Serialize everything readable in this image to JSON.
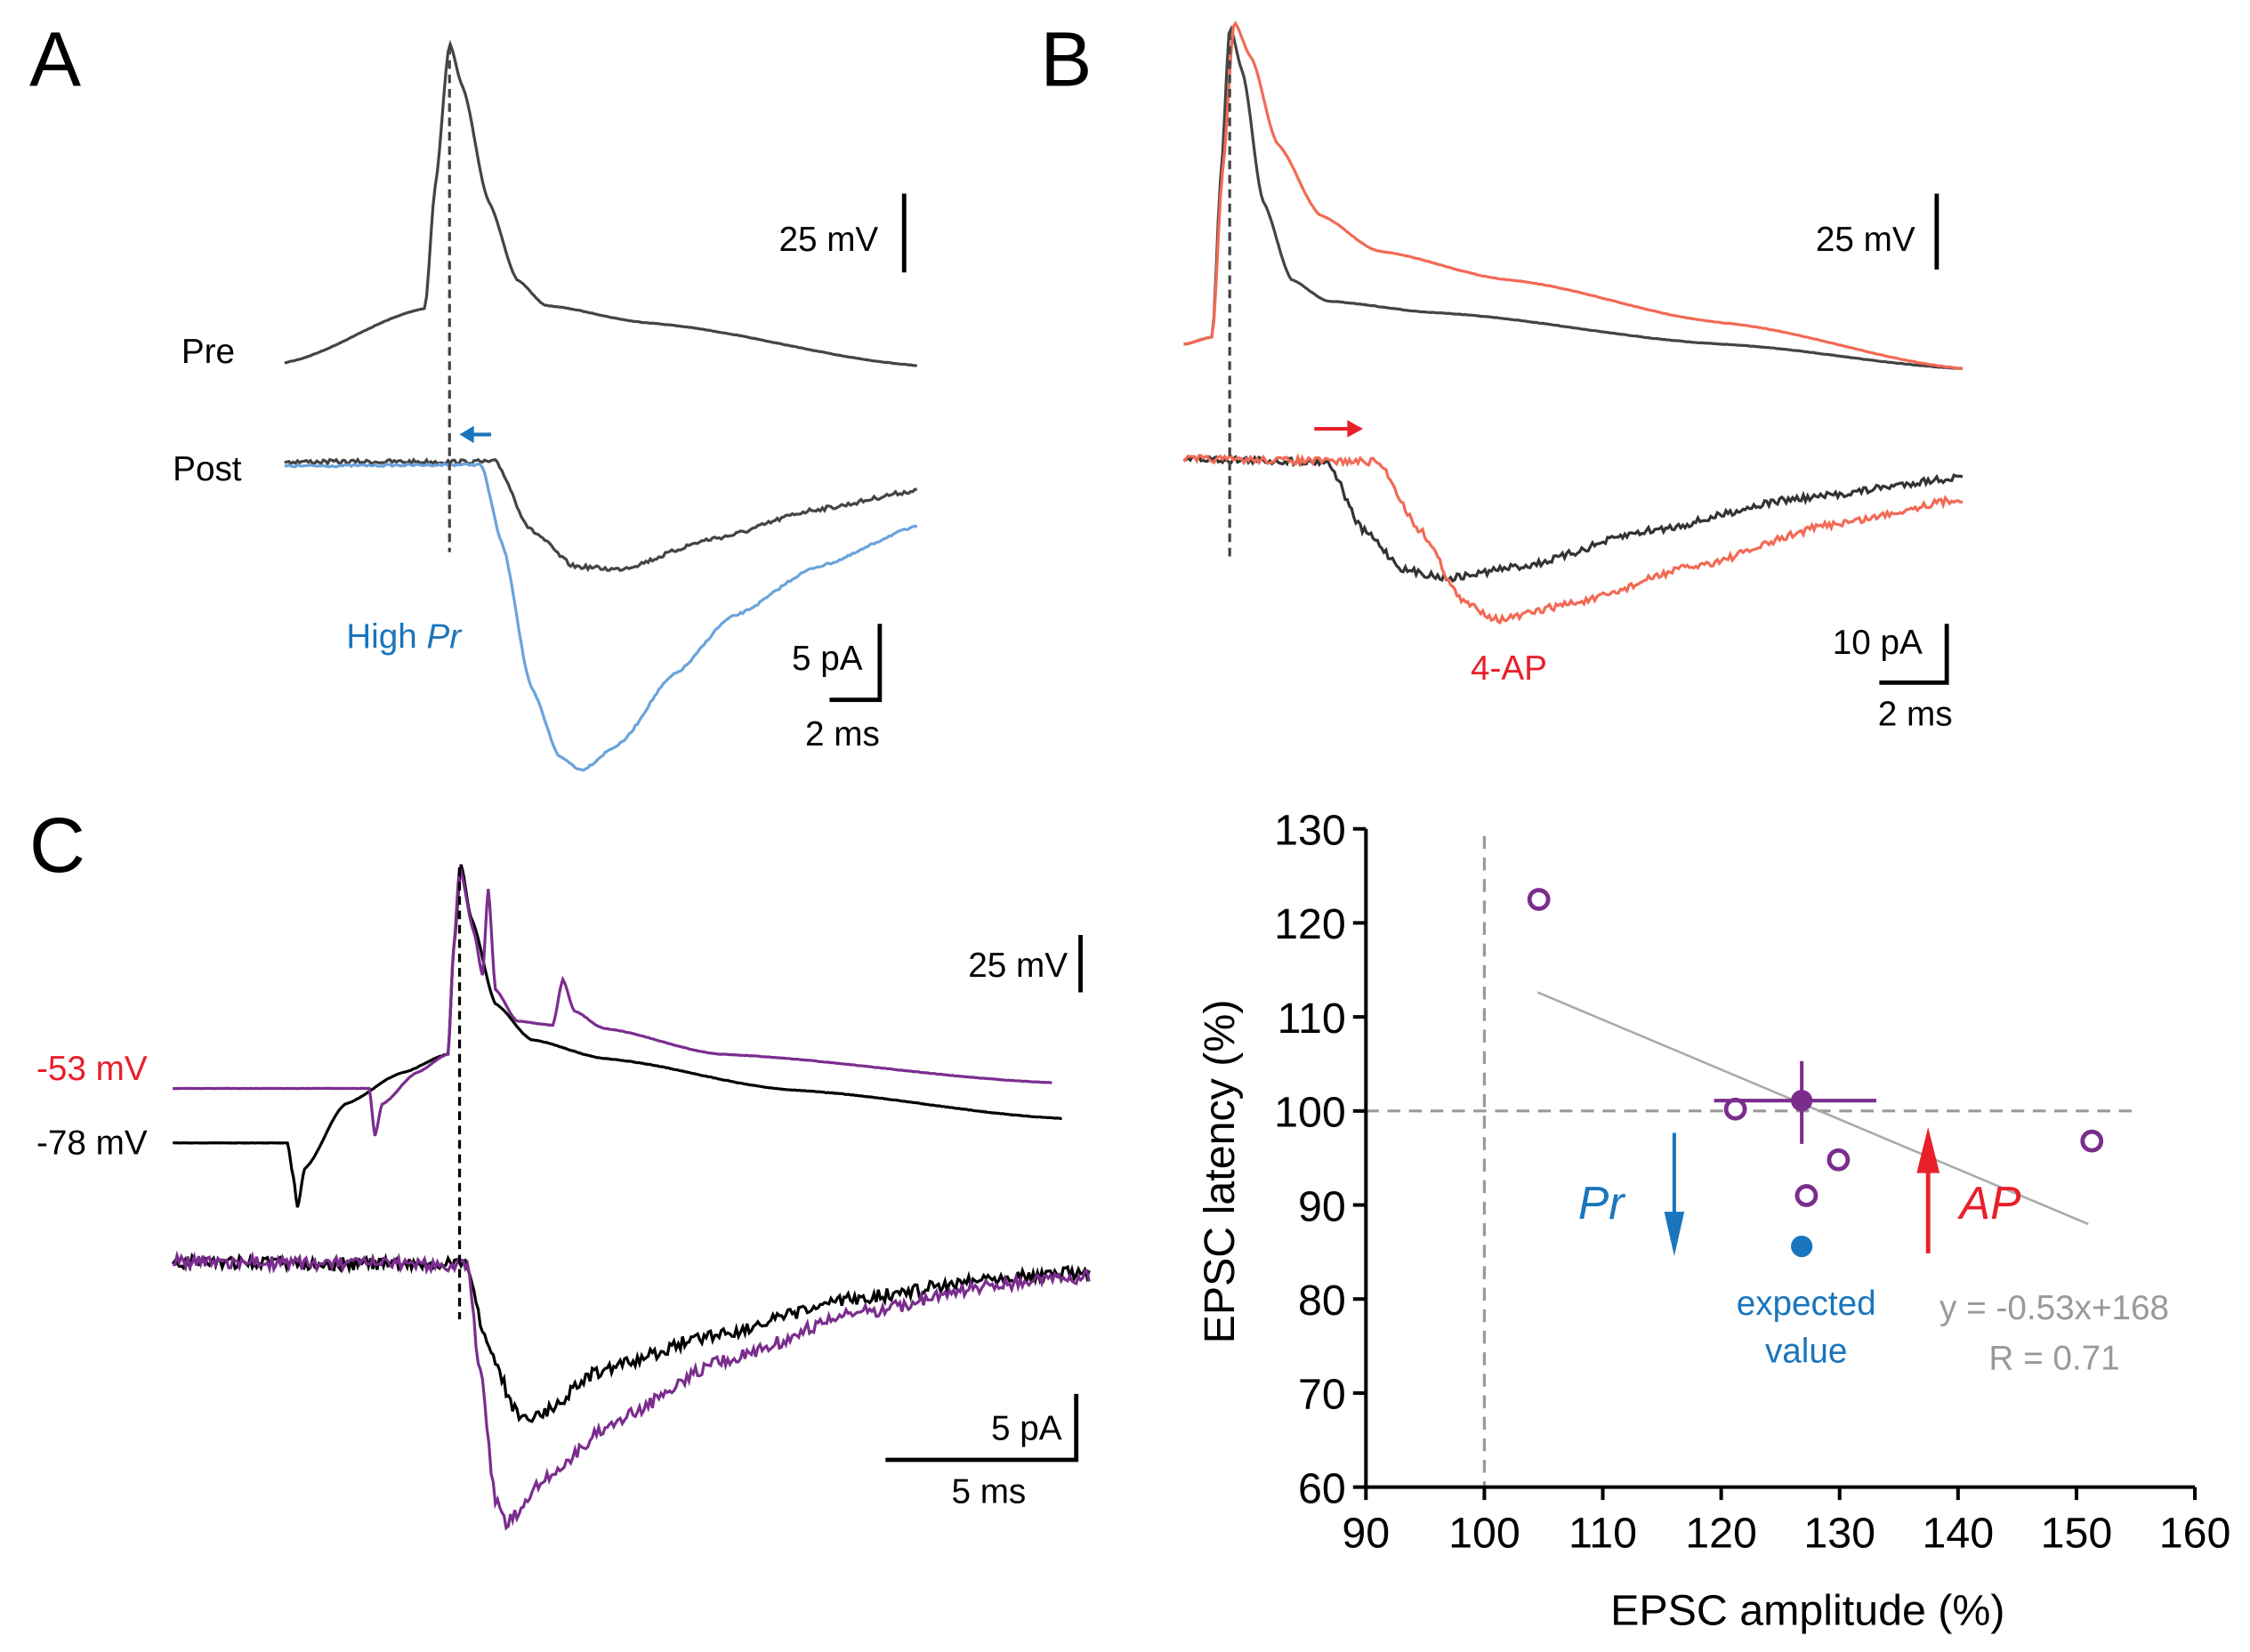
{
  "panels": {
    "A": {
      "label": "A",
      "pre_label": "Pre",
      "post_label": "Post",
      "voltage_scale": "25 mV",
      "current_scale": "5 pA",
      "time_scale": "2 ms",
      "condition_label_prefix": "High ",
      "condition_label_italic": "Pr",
      "condition_color": "#1a75bc"
    },
    "B": {
      "label": "B",
      "voltage_scale": "25 mV",
      "current_scale": "10 pA",
      "time_scale": "2 ms",
      "condition_label": "4-AP",
      "condition_color": "#e8202a"
    },
    "C": {
      "label": "C",
      "holding_depolarized": "-53 mV",
      "holding_hyperpolarized": "-78 mV",
      "voltage_scale": "25 mV",
      "current_scale": "5 pA",
      "time_scale": "5 ms",
      "depolarized_color": "#7b2d8e"
    }
  },
  "chart_data": {
    "type": "scatter",
    "xlabel": "EPSC amplitude (%)",
    "ylabel": "EPSC latency (%)",
    "xlim": [
      90,
      160
    ],
    "ylim": [
      60,
      130
    ],
    "xticks": [
      90,
      100,
      110,
      120,
      130,
      140,
      150,
      160
    ],
    "yticks": [
      60,
      70,
      80,
      90,
      100,
      110,
      120,
      130
    ],
    "grid": false,
    "reference_lines": {
      "x": 100,
      "y": 100
    },
    "points": [
      {
        "x": 104.6,
        "y": 122.5
      },
      {
        "x": 121.2,
        "y": 100.2
      },
      {
        "x": 129.9,
        "y": 94.8
      },
      {
        "x": 127.2,
        "y": 91.0
      },
      {
        "x": 151.3,
        "y": 96.8
      }
    ],
    "point_color": "#7b2d8e",
    "mean": {
      "x": 126.8,
      "y": 101.1,
      "x_err": [
        119.4,
        133.1
      ],
      "y_err": [
        96.5,
        105.3
      ]
    },
    "expected": {
      "x": 126.8,
      "y": 85.6,
      "label_line1": "expected",
      "label_line2": "value",
      "color": "#1a75bc"
    },
    "fit": {
      "slope": -0.53,
      "intercept": 168,
      "x_range": [
        104.5,
        151
      ],
      "equation": "y = -0.53x+168",
      "r_text": "R = 0.71",
      "color": "#aaaaaa"
    },
    "arrows": [
      {
        "label": "Pr",
        "direction": "down",
        "color": "#1a75bc"
      },
      {
        "label": "AP",
        "direction": "up",
        "color": "#e8202a"
      }
    ]
  }
}
